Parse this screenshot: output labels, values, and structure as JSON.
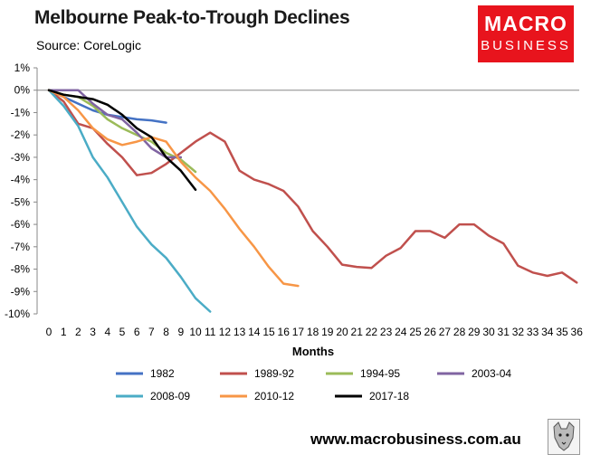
{
  "header": {
    "title": "Melbourne Peak-to-Trough Declines",
    "source": "Source: CoreLogic"
  },
  "logo": {
    "line1": "MACRO",
    "line2": "BUSINESS",
    "color": "#e8141d"
  },
  "footer": {
    "url": "www.macrobusiness.com.au"
  },
  "chart_data": {
    "type": "line",
    "title": "Melbourne Peak-to-Trough Declines",
    "xlabel": "Months",
    "ylabel": "",
    "xlim": [
      0,
      36
    ],
    "ylim": [
      -10,
      1
    ],
    "y_ticks": [
      1,
      0,
      -1,
      -2,
      -3,
      -4,
      -5,
      -6,
      -7,
      -8,
      -9,
      -10
    ],
    "y_tick_labels": [
      "1%",
      "0%",
      "-1%",
      "-2%",
      "-3%",
      "-4%",
      "-5%",
      "-6%",
      "-7%",
      "-8%",
      "-9%",
      "-10%"
    ],
    "x_ticks": [
      0,
      1,
      2,
      3,
      4,
      5,
      6,
      7,
      8,
      9,
      10,
      11,
      12,
      13,
      14,
      15,
      16,
      17,
      18,
      19,
      20,
      21,
      22,
      23,
      24,
      25,
      26,
      27,
      28,
      29,
      30,
      31,
      32,
      33,
      34,
      35,
      36
    ],
    "x_tick_labels": [
      "0",
      "1",
      "2",
      "3",
      "4",
      "5",
      "6",
      "7",
      "8",
      "9",
      "10",
      "11",
      "12",
      "13",
      "14",
      "15",
      "16",
      "17",
      "18",
      "19",
      "20",
      "21",
      "22",
      "23",
      "24",
      "25",
      "26",
      "27",
      "28",
      "29",
      "30",
      "31",
      "32",
      "33",
      "34",
      "35",
      "36"
    ],
    "grid": false,
    "legend_position": "bottom",
    "series": [
      {
        "name": "1982",
        "color": "#4472c4",
        "values": [
          0,
          -0.3,
          -0.6,
          -0.9,
          -1.1,
          -1.2,
          -1.3,
          -1.35,
          -1.45
        ]
      },
      {
        "name": "1989-92",
        "color": "#c0504d",
        "values": [
          0,
          -0.5,
          -1.5,
          -1.7,
          -2.4,
          -3.0,
          -3.8,
          -3.7,
          -3.3,
          -2.8,
          -2.3,
          -1.9,
          -2.3,
          -3.6,
          -4.0,
          -4.2,
          -4.5,
          -5.2,
          -6.3,
          -7.0,
          -7.8,
          -7.9,
          -7.95,
          -7.4,
          -7.05,
          -6.3,
          -6.3,
          -6.6,
          -6.0,
          -6.0,
          -6.5,
          -6.85,
          -7.85,
          -8.15,
          -8.3,
          -8.15,
          -8.6
        ]
      },
      {
        "name": "1994-95",
        "color": "#9bbb59",
        "values": [
          0,
          -0.2,
          -0.3,
          -0.7,
          -1.3,
          -1.7,
          -2.0,
          -2.3,
          -2.8,
          -3.1,
          -3.65
        ]
      },
      {
        "name": "2003-04",
        "color": "#8064a2",
        "values": [
          0,
          0,
          0,
          -0.6,
          -1.1,
          -1.3,
          -1.9,
          -2.6,
          -3.0,
          -3.0
        ]
      },
      {
        "name": "2008-09",
        "color": "#4bacc6",
        "values": [
          0,
          -0.7,
          -1.6,
          -3.0,
          -3.9,
          -5.0,
          -6.1,
          -6.9,
          -7.5,
          -8.35,
          -9.3,
          -9.9
        ]
      },
      {
        "name": "2010-12",
        "color": "#f79646",
        "values": [
          0,
          -0.3,
          -0.9,
          -1.7,
          -2.2,
          -2.45,
          -2.3,
          -2.1,
          -2.3,
          -3.2,
          -3.9,
          -4.5,
          -5.3,
          -6.2,
          -7.0,
          -7.9,
          -8.65,
          -8.75
        ]
      },
      {
        "name": "2017-18",
        "color": "#000000",
        "values": [
          0,
          -0.2,
          -0.3,
          -0.4,
          -0.65,
          -1.1,
          -1.7,
          -2.1,
          -3.0,
          -3.6,
          -4.45
        ]
      }
    ]
  }
}
